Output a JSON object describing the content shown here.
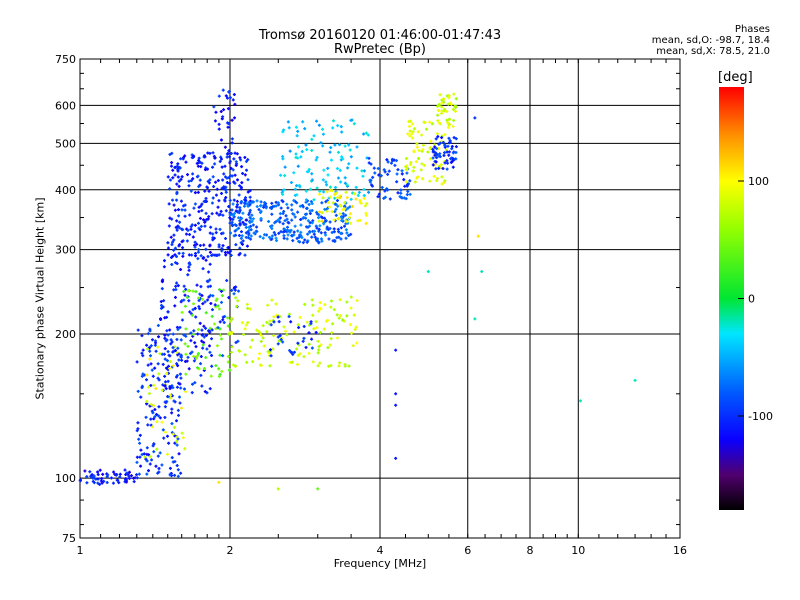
{
  "chart_data": {
    "type": "scatter",
    "title": "Tromsø 20160120 01:46:00-01:47:43",
    "subtitle": "RwPretec (Bp)",
    "xlabel": "Frequency [MHz]",
    "ylabel": "Stationary phase Virtual Height [km]",
    "x_scale": "log",
    "y_scale": "log",
    "xlim": [
      1,
      16
    ],
    "ylim": [
      75,
      750
    ],
    "x_ticks": [
      1,
      2,
      4,
      6,
      8,
      10,
      16
    ],
    "x_tick_labels": [
      "1",
      "2",
      "4",
      "6",
      "8",
      "10",
      "16"
    ],
    "y_ticks": [
      75,
      100,
      200,
      300,
      400,
      500,
      600,
      750
    ],
    "y_tick_labels": [
      "75",
      "100",
      "200",
      "300",
      "400",
      "500",
      "600",
      "750"
    ],
    "grid": true,
    "legend": {
      "heading": "Phases",
      "line1": "mean, sd,O: -98.7, 18.4",
      "line2": "mean, sd,X:  78.5, 21.0"
    },
    "colorbar": {
      "unit": "[deg]",
      "range": [
        -180,
        180
      ],
      "ticks": [
        100,
        0,
        -100
      ],
      "tick_labels": [
        "100",
        "0",
        "-100"
      ]
    },
    "series": [
      {
        "marker_colors": "phase",
        "clusters": [
          {
            "x": [
              1.0,
              1.3
            ],
            "y": [
              97,
              104
            ],
            "phase": -110,
            "count": 60
          },
          {
            "x": [
              1.3,
              1.6
            ],
            "y": [
              100,
              210
            ],
            "phase": -100,
            "count": 180
          },
          {
            "x": [
              1.35,
              1.65
            ],
            "y": [
              110,
              200
            ],
            "phase": 90,
            "count": 40
          },
          {
            "x": [
              1.45,
              1.85
            ],
            "y": [
              150,
              300
            ],
            "phase": -105,
            "count": 140
          },
          {
            "x": [
              1.5,
              2.2
            ],
            "y": [
              290,
              480
            ],
            "phase": -105,
            "count": 330
          },
          {
            "x": [
              1.6,
              2.0
            ],
            "y": [
              160,
              250
            ],
            "phase": 40,
            "count": 60
          },
          {
            "x": [
              1.7,
              2.1
            ],
            "y": [
              180,
              260
            ],
            "phase": -95,
            "count": 40
          },
          {
            "x": [
              1.85,
              2.05
            ],
            "y": [
              480,
              650
            ],
            "phase": -110,
            "count": 30
          },
          {
            "x": [
              2.0,
              3.5
            ],
            "y": [
              310,
              380
            ],
            "phase": -80,
            "count": 300
          },
          {
            "x": [
              2.5,
              3.8
            ],
            "y": [
              380,
              560
            ],
            "phase": -40,
            "count": 120
          },
          {
            "x": [
              2.0,
              3.6
            ],
            "y": [
              170,
              240
            ],
            "phase": 80,
            "count": 140
          },
          {
            "x": [
              2.4,
              3.0
            ],
            "y": [
              180,
              220
            ],
            "phase": -100,
            "count": 30
          },
          {
            "x": [
              3.0,
              3.8
            ],
            "y": [
              340,
              400
            ],
            "phase": 95,
            "count": 50
          },
          {
            "x": [
              3.8,
              4.6
            ],
            "y": [
              380,
              470
            ],
            "phase": -90,
            "count": 60
          },
          {
            "x": [
              4.5,
              5.5
            ],
            "y": [
              410,
              560
            ],
            "phase": 85,
            "count": 80
          },
          {
            "x": [
              5.1,
              5.7
            ],
            "y": [
              440,
              520
            ],
            "phase": -100,
            "count": 60
          },
          {
            "x": [
              5.2,
              5.7
            ],
            "y": [
              540,
              640
            ],
            "phase": 80,
            "count": 40
          }
        ],
        "scattered": [
          {
            "x": 4.3,
            "y": 185,
            "phase": -110
          },
          {
            "x": 4.3,
            "y": 150,
            "phase": -110
          },
          {
            "x": 4.3,
            "y": 142,
            "phase": -110
          },
          {
            "x": 4.3,
            "y": 110,
            "phase": -110
          },
          {
            "x": 5.0,
            "y": 270,
            "phase": -20
          },
          {
            "x": 6.2,
            "y": 215,
            "phase": -20
          },
          {
            "x": 6.4,
            "y": 270,
            "phase": -20
          },
          {
            "x": 6.3,
            "y": 320,
            "phase": 110
          },
          {
            "x": 6.2,
            "y": 565,
            "phase": -100
          },
          {
            "x": 10.1,
            "y": 145,
            "phase": -20
          },
          {
            "x": 13.0,
            "y": 160,
            "phase": -20
          },
          {
            "x": 2.5,
            "y": 95,
            "phase": 70
          },
          {
            "x": 1.9,
            "y": 98,
            "phase": 110
          },
          {
            "x": 3.0,
            "y": 95,
            "phase": 40
          }
        ]
      }
    ]
  }
}
